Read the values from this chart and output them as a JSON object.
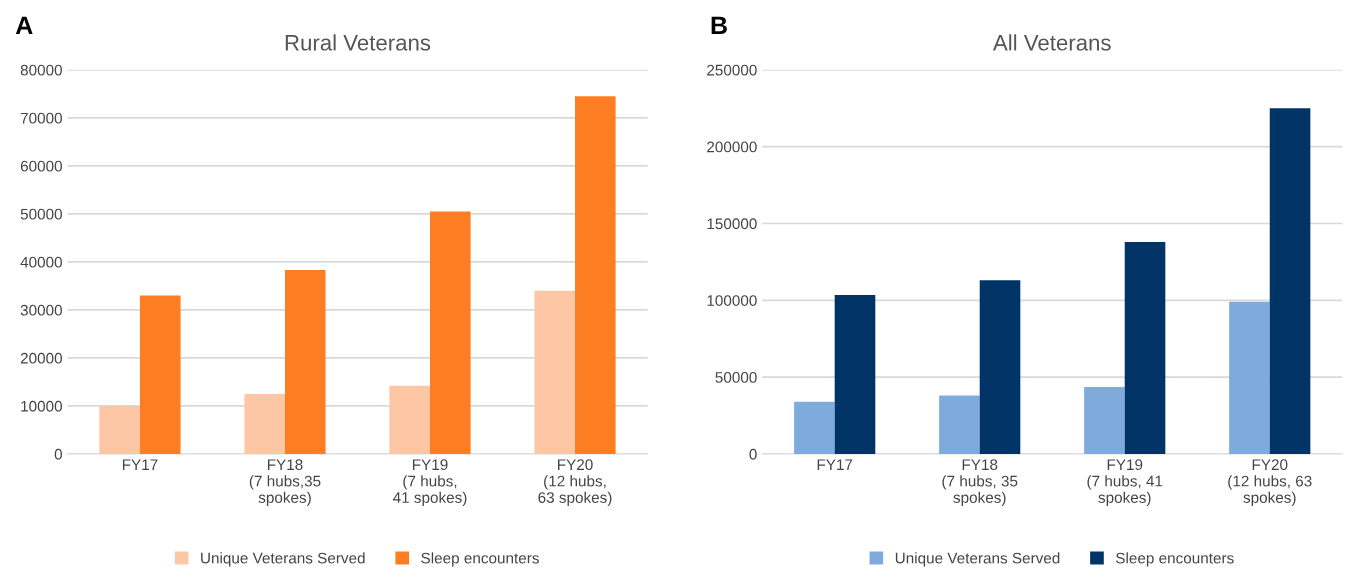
{
  "chart_data": [
    {
      "type": "bar",
      "title": "Rural Veterans",
      "annotations": [
        "A"
      ],
      "categories": [
        "FY17",
        "FY18\n(7 hubs,35\nspokes)",
        "FY19\n(7 hubs,\n41 spokes)",
        "FY20\n(12 hubs,\n63 spokes)"
      ],
      "series": [
        {
          "name": "Unique Veterans Served",
          "color": "#fdc7a5",
          "values": [
            10000,
            12500,
            14200,
            34000
          ]
        },
        {
          "name": "Sleep encounters",
          "color": "#fd7e22",
          "values": [
            33000,
            38300,
            50500,
            74500
          ]
        }
      ],
      "ylim": [
        0,
        80000
      ],
      "yticks": [
        0,
        10000,
        20000,
        30000,
        40000,
        50000,
        60000,
        70000,
        80000
      ],
      "grid": "y",
      "legend": "bottom"
    },
    {
      "type": "bar",
      "title": "All Veterans",
      "annotations": [
        "B"
      ],
      "categories": [
        "FY17",
        "FY18\n(7 hubs, 35\nspokes)",
        "FY19\n(7 hubs, 41\nspokes)",
        "FY20\n(12 hubs, 63\nspokes)"
      ],
      "series": [
        {
          "name": "Unique Veterans Served",
          "color": "#7faadc",
          "values": [
            34000,
            38000,
            43500,
            99000
          ]
        },
        {
          "name": "Sleep encounters",
          "color": "#003366",
          "values": [
            103500,
            113000,
            138000,
            225000
          ]
        }
      ],
      "ylim": [
        0,
        250000
      ],
      "yticks": [
        0,
        50000,
        100000,
        150000,
        200000,
        250000
      ],
      "grid": "y",
      "legend": "bottom"
    }
  ]
}
